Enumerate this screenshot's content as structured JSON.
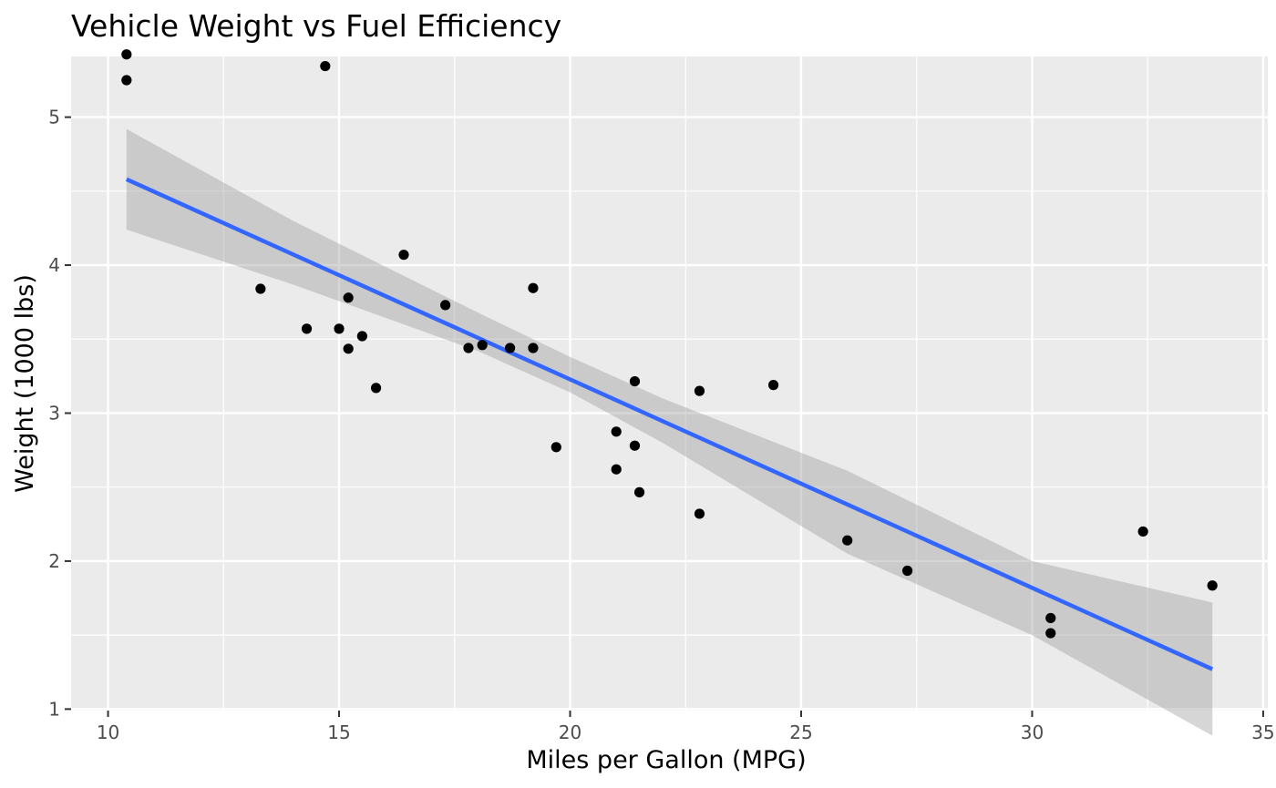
{
  "chart_data": {
    "type": "scatter",
    "title": "Vehicle Weight vs Fuel Efficiency",
    "xlabel": "Miles per Gallon (MPG)",
    "ylabel": "Weight (1000 lbs)",
    "xlim": [
      9.2,
      35.1
    ],
    "ylim": [
      0.99,
      5.41
    ],
    "x_ticks": [
      10,
      15,
      20,
      25,
      30,
      35
    ],
    "y_ticks": [
      1,
      2,
      3,
      4,
      5
    ],
    "grid": true,
    "colors": {
      "panel": "#ebebeb",
      "grid": "#ffffff",
      "points": "#000000",
      "fit_line": "#3366ff",
      "confidence_band": "#999999"
    },
    "points": [
      {
        "x": 10.4,
        "y": 5.424
      },
      {
        "x": 10.4,
        "y": 5.25
      },
      {
        "x": 14.7,
        "y": 5.345
      },
      {
        "x": 13.3,
        "y": 3.84
      },
      {
        "x": 14.3,
        "y": 3.57
      },
      {
        "x": 15.0,
        "y": 3.57
      },
      {
        "x": 15.2,
        "y": 3.78
      },
      {
        "x": 15.2,
        "y": 3.435
      },
      {
        "x": 15.5,
        "y": 3.52
      },
      {
        "x": 15.8,
        "y": 3.17
      },
      {
        "x": 16.4,
        "y": 4.07
      },
      {
        "x": 17.3,
        "y": 3.73
      },
      {
        "x": 17.8,
        "y": 3.44
      },
      {
        "x": 18.1,
        "y": 3.46
      },
      {
        "x": 18.7,
        "y": 3.44
      },
      {
        "x": 19.2,
        "y": 3.44
      },
      {
        "x": 19.2,
        "y": 3.845
      },
      {
        "x": 19.7,
        "y": 2.77
      },
      {
        "x": 21.0,
        "y": 2.62
      },
      {
        "x": 21.0,
        "y": 2.875
      },
      {
        "x": 21.4,
        "y": 3.215
      },
      {
        "x": 21.4,
        "y": 2.78
      },
      {
        "x": 21.5,
        "y": 2.465
      },
      {
        "x": 22.8,
        "y": 3.15
      },
      {
        "x": 22.8,
        "y": 2.32
      },
      {
        "x": 24.4,
        "y": 3.19
      },
      {
        "x": 26.0,
        "y": 2.14
      },
      {
        "x": 27.3,
        "y": 1.935
      },
      {
        "x": 30.4,
        "y": 1.615
      },
      {
        "x": 30.4,
        "y": 1.513
      },
      {
        "x": 32.4,
        "y": 2.2
      },
      {
        "x": 33.9,
        "y": 1.835
      }
    ],
    "fit": {
      "type": "linear",
      "x_range": [
        10.4,
        33.9
      ],
      "y_at_xmin": 4.58,
      "y_at_xmax": 1.27,
      "confidence_band": [
        {
          "x": 10.4,
          "lower": 4.24,
          "upper": 4.92
        },
        {
          "x": 14.0,
          "lower": 3.87,
          "upper": 4.3
        },
        {
          "x": 18.0,
          "lower": 3.42,
          "upper": 3.68
        },
        {
          "x": 20.0,
          "lower": 3.14,
          "upper": 3.38
        },
        {
          "x": 22.0,
          "lower": 2.8,
          "upper": 3.1
        },
        {
          "x": 26.0,
          "lower": 2.05,
          "upper": 2.61
        },
        {
          "x": 30.0,
          "lower": 1.5,
          "upper": 2.0
        },
        {
          "x": 33.9,
          "lower": 0.82,
          "upper": 1.72
        }
      ]
    }
  }
}
